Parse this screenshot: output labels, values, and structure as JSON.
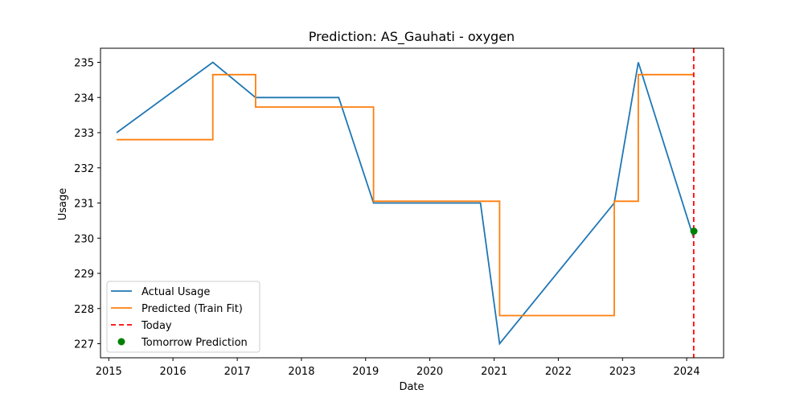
{
  "chart_data": {
    "type": "line",
    "title": "Prediction: AS_Gauhati - oxygen",
    "xlabel": "Date",
    "ylabel": "Usage",
    "x_ticks": [
      "2015",
      "2016",
      "2017",
      "2018",
      "2019",
      "2020",
      "2021",
      "2022",
      "2023",
      "2024"
    ],
    "y_ticks": [
      "227",
      "228",
      "229",
      "230",
      "231",
      "232",
      "233",
      "234",
      "235"
    ],
    "xlim": [
      "2014-11-15",
      "2024-07-29"
    ],
    "ylim": [
      226.6,
      235.4
    ],
    "grid": false,
    "legend_position": "lower-left",
    "series": [
      {
        "name": "Actual Usage",
        "color": "#1f77b4",
        "style": "line",
        "points": [
          {
            "x": "2015-02-15",
            "y": 233
          },
          {
            "x": "2016-08-15",
            "y": 235
          },
          {
            "x": "2017-04-15",
            "y": 234
          },
          {
            "x": "2018-08-01",
            "y": 234
          },
          {
            "x": "2019-02-15",
            "y": 231
          },
          {
            "x": "2020-10-15",
            "y": 231
          },
          {
            "x": "2021-02-01",
            "y": 227
          },
          {
            "x": "2022-11-15",
            "y": 231
          },
          {
            "x": "2023-04-01",
            "y": 235
          },
          {
            "x": "2024-02-10",
            "y": 230
          }
        ]
      },
      {
        "name": "Predicted (Train Fit)",
        "color": "#ff7f0e",
        "style": "step",
        "points": [
          {
            "x": "2015-02-15",
            "y": 232.8
          },
          {
            "x": "2016-08-15",
            "y": 232.8
          },
          {
            "x": "2016-08-15",
            "y": 234.65
          },
          {
            "x": "2017-04-15",
            "y": 234.65
          },
          {
            "x": "2017-04-15",
            "y": 233.73
          },
          {
            "x": "2019-02-15",
            "y": 233.73
          },
          {
            "x": "2019-02-15",
            "y": 231.05
          },
          {
            "x": "2021-02-01",
            "y": 231.05
          },
          {
            "x": "2021-02-01",
            "y": 227.8
          },
          {
            "x": "2022-11-15",
            "y": 227.8
          },
          {
            "x": "2022-11-15",
            "y": 231.05
          },
          {
            "x": "2023-04-01",
            "y": 231.05
          },
          {
            "x": "2023-04-01",
            "y": 234.65
          },
          {
            "x": "2024-02-10",
            "y": 234.65
          }
        ]
      },
      {
        "name": "Today",
        "color": "#ff0000",
        "style": "vline-dashed",
        "x": "2024-02-10"
      },
      {
        "name": "Tomorrow Prediction",
        "color": "#008000",
        "style": "scatter",
        "points": [
          {
            "x": "2024-02-11",
            "y": 230.2
          }
        ]
      }
    ]
  }
}
